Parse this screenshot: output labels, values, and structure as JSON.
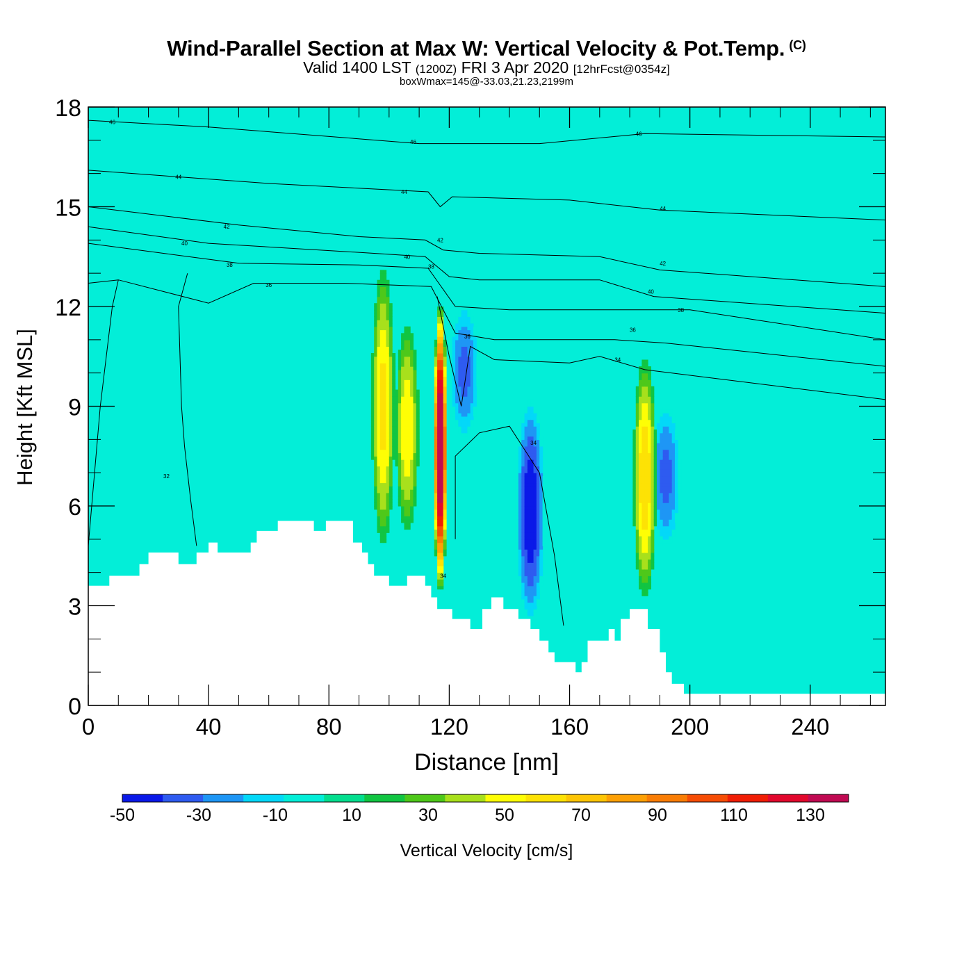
{
  "chart_data": {
    "type": "heatmap",
    "title": "Wind-Parallel Section at Max W: Vertical Velocity & Pot.Temp.",
    "title_mark": "(C)",
    "subtitle": {
      "main_a": "Valid 1400 LST",
      "small_a": "(1200Z)",
      "main_b": "FRI 3 Apr 2020",
      "small_b": "[12hrFcst@0354z]"
    },
    "annotation": "boxWmax=145@-33.03,21.23,2199m",
    "xlabel": "Distance [nm]",
    "ylabel": "Height [Kft MSL]",
    "xlim": [
      0,
      265
    ],
    "ylim": [
      0,
      18
    ],
    "xticks": [
      "0",
      "40",
      "80",
      "120",
      "160",
      "200",
      "240"
    ],
    "yticks": [
      "0",
      "3",
      "6",
      "9",
      "12",
      "15",
      "18"
    ],
    "colorbar": {
      "label": "Vertical Velocity [cm/s]",
      "ticks": [
        "-50",
        "-30",
        "-10",
        "10",
        "30",
        "50",
        "70",
        "90",
        "110",
        "130"
      ],
      "bounds": [
        -50,
        140
      ],
      "step": 10,
      "colors": [
        "#0a19e8",
        "#2e5bf0",
        "#1e96f5",
        "#03d8f8",
        "#03eed8",
        "#03de8e",
        "#11c542",
        "#4ec81a",
        "#a8e01c",
        "#fefe05",
        "#fde205",
        "#fdc505",
        "#fda005",
        "#f97d05",
        "#f64d05",
        "#f01e05",
        "#e2082d",
        "#c00a52"
      ],
      "color_note": "background value bin -10..0 #03eed8 dominates"
    },
    "background_w_cms": [
      -5,
      5
    ],
    "terrain_kft": [
      [
        0,
        3.6
      ],
      [
        7,
        3.6
      ],
      [
        7,
        3.9
      ],
      [
        17,
        3.9
      ],
      [
        17,
        4.25
      ],
      [
        20,
        4.25
      ],
      [
        20,
        4.6
      ],
      [
        30,
        4.6
      ],
      [
        30,
        4.25
      ],
      [
        36,
        4.25
      ],
      [
        36,
        4.6
      ],
      [
        40,
        4.6
      ],
      [
        40,
        4.9
      ],
      [
        43,
        4.9
      ],
      [
        43,
        4.6
      ],
      [
        54,
        4.6
      ],
      [
        54,
        4.9
      ],
      [
        56,
        4.9
      ],
      [
        56,
        5.25
      ],
      [
        63,
        5.25
      ],
      [
        63,
        5.55
      ],
      [
        75,
        5.55
      ],
      [
        75,
        5.25
      ],
      [
        79,
        5.25
      ],
      [
        79,
        5.55
      ],
      [
        88,
        5.55
      ],
      [
        88,
        4.9
      ],
      [
        91,
        4.9
      ],
      [
        91,
        4.6
      ],
      [
        93,
        4.6
      ],
      [
        93,
        4.25
      ],
      [
        95,
        4.25
      ],
      [
        95,
        3.9
      ],
      [
        100,
        3.9
      ],
      [
        100,
        3.6
      ],
      [
        106,
        3.6
      ],
      [
        106,
        3.9
      ],
      [
        112,
        3.9
      ],
      [
        112,
        3.6
      ],
      [
        114,
        3.6
      ],
      [
        114,
        3.25
      ],
      [
        116,
        3.25
      ],
      [
        116,
        2.9
      ],
      [
        121,
        2.9
      ],
      [
        121,
        2.6
      ],
      [
        127,
        2.6
      ],
      [
        127,
        2.3
      ],
      [
        131,
        2.3
      ],
      [
        131,
        2.9
      ],
      [
        134,
        2.9
      ],
      [
        134,
        3.25
      ],
      [
        138,
        3.25
      ],
      [
        138,
        2.9
      ],
      [
        143,
        2.9
      ],
      [
        143,
        2.6
      ],
      [
        147,
        2.6
      ],
      [
        147,
        2.3
      ],
      [
        150,
        2.3
      ],
      [
        150,
        1.95
      ],
      [
        153,
        1.95
      ],
      [
        153,
        1.6
      ],
      [
        155,
        1.6
      ],
      [
        155,
        1.3
      ],
      [
        162,
        1.3
      ],
      [
        162,
        1.0
      ],
      [
        164,
        1.0
      ],
      [
        164,
        1.3
      ],
      [
        166,
        1.3
      ],
      [
        166,
        1.95
      ],
      [
        173,
        1.95
      ],
      [
        173,
        2.3
      ],
      [
        175,
        2.3
      ],
      [
        175,
        1.95
      ],
      [
        177,
        1.95
      ],
      [
        177,
        2.6
      ],
      [
        180,
        2.6
      ],
      [
        180,
        2.9
      ],
      [
        186,
        2.9
      ],
      [
        186,
        2.3
      ],
      [
        190,
        2.3
      ],
      [
        190,
        1.6
      ],
      [
        192,
        1.6
      ],
      [
        192,
        1.0
      ],
      [
        194,
        1.0
      ],
      [
        194,
        0.65
      ],
      [
        198,
        0.65
      ],
      [
        198,
        0.35
      ],
      [
        265,
        0.35
      ]
    ],
    "features": [
      {
        "type": "updraft",
        "x_nm": 98,
        "base_kft": 4.4,
        "top_kft": 13.6,
        "peak_w_cms": 55
      },
      {
        "type": "updraft",
        "x_nm": 106,
        "base_kft": 4.9,
        "top_kft": 11.8,
        "peak_w_cms": 50
      },
      {
        "type": "updraft",
        "x_nm": 117,
        "base_kft": 3.2,
        "top_kft": 12.3,
        "peak_w_cms": 145
      },
      {
        "type": "updraft",
        "x_nm": 185,
        "base_kft": 2.9,
        "top_kft": 10.8,
        "peak_w_cms": 60
      },
      {
        "type": "downdraft",
        "x_nm": 125,
        "base_kft": 7.9,
        "top_kft": 12.2,
        "peak_w_cms": -35
      },
      {
        "type": "downdraft",
        "x_nm": 147,
        "base_kft": 2.3,
        "top_kft": 9.4,
        "peak_w_cms": -50
      },
      {
        "type": "downdraft",
        "x_nm": 192,
        "base_kft": 4.6,
        "top_kft": 9.2,
        "peak_w_cms": -35
      }
    ],
    "theta_contours": [
      {
        "value": 46,
        "points": [
          [
            0,
            17.6
          ],
          [
            40,
            17.4
          ],
          [
            110,
            16.9
          ],
          [
            150,
            16.9
          ],
          [
            185,
            17.2
          ],
          [
            265,
            17.1
          ]
        ],
        "label": "46",
        "label_at": [
          [
            8,
            17.55
          ],
          [
            108,
            16.95
          ],
          [
            183,
            17.2
          ]
        ]
      },
      {
        "value": 44,
        "points": [
          [
            0,
            16.1
          ],
          [
            60,
            15.7
          ],
          [
            113,
            15.45
          ],
          [
            117,
            15.0
          ],
          [
            121,
            15.3
          ],
          [
            160,
            15.2
          ],
          [
            190,
            14.9
          ],
          [
            265,
            14.6
          ]
        ],
        "label": "44",
        "label_at": [
          [
            30,
            15.9
          ],
          [
            105,
            15.45
          ],
          [
            191,
            14.95
          ]
        ]
      },
      {
        "value": 42,
        "points": [
          [
            0,
            15.0
          ],
          [
            50,
            14.45
          ],
          [
            90,
            14.1
          ],
          [
            112,
            14.0
          ],
          [
            118,
            13.7
          ],
          [
            130,
            13.6
          ],
          [
            170,
            13.5
          ],
          [
            190,
            13.1
          ],
          [
            265,
            12.6
          ]
        ],
        "label": "42",
        "label_at": [
          [
            46,
            14.4
          ],
          [
            117,
            14.0
          ],
          [
            191,
            13.3
          ]
        ]
      },
      {
        "value": 40,
        "points": [
          [
            0,
            14.4
          ],
          [
            40,
            13.9
          ],
          [
            95,
            13.6
          ],
          [
            112,
            13.5
          ],
          [
            120,
            12.9
          ],
          [
            130,
            12.8
          ],
          [
            170,
            12.8
          ],
          [
            188,
            12.3
          ],
          [
            265,
            11.8
          ]
        ],
        "label": "40",
        "label_at": [
          [
            32,
            13.9
          ],
          [
            106,
            13.5
          ],
          [
            187,
            12.45
          ]
        ]
      },
      {
        "value": 38,
        "points": [
          [
            0,
            13.9
          ],
          [
            50,
            13.3
          ],
          [
            90,
            13.25
          ],
          [
            113,
            13.15
          ],
          [
            122,
            12.0
          ],
          [
            140,
            11.9
          ],
          [
            180,
            11.9
          ],
          [
            200,
            11.9
          ],
          [
            265,
            11.0
          ]
        ],
        "label": "38",
        "label_at": [
          [
            47,
            13.25
          ],
          [
            114,
            13.2
          ],
          [
            197,
            11.9
          ]
        ]
      },
      {
        "value": 36,
        "points": [
          [
            0,
            12.7
          ],
          [
            10,
            12.8
          ],
          [
            40,
            12.1
          ],
          [
            55,
            12.7
          ],
          [
            85,
            12.7
          ],
          [
            114,
            12.6
          ],
          [
            122,
            11.2
          ],
          [
            135,
            11.0
          ],
          [
            175,
            11.0
          ],
          [
            192,
            10.9
          ],
          [
            265,
            10.2
          ]
        ],
        "label": "36",
        "label_at": [
          [
            60,
            12.65
          ],
          [
            126,
            11.1
          ],
          [
            181,
            11.3
          ]
        ]
      },
      {
        "value": 34,
        "points": [
          [
            0,
            4.8
          ],
          [
            4,
            9.0
          ],
          [
            8,
            12.0
          ],
          [
            10,
            12.8
          ]
        ],
        "label": "",
        "label_at": []
      },
      {
        "value": 34,
        "points": [
          [
            116,
            12.3
          ],
          [
            120,
            10.5
          ],
          [
            124,
            9.0
          ],
          [
            127,
            10.8
          ],
          [
            135,
            10.4
          ],
          [
            160,
            10.3
          ],
          [
            170,
            10.5
          ],
          [
            185,
            10.1
          ],
          [
            265,
            9.2
          ]
        ],
        "label": "34",
        "label_at": [
          [
            176,
            10.4
          ]
        ]
      },
      {
        "value": 34,
        "points": [
          [
            122,
            5.0
          ],
          [
            122,
            7.5
          ],
          [
            130,
            8.2
          ],
          [
            140,
            8.4
          ],
          [
            150,
            7.0
          ],
          [
            155,
            4.5
          ],
          [
            158,
            2.4
          ]
        ],
        "label": "34",
        "label_at": [
          [
            148,
            7.9
          ],
          [
            118,
            3.9
          ]
        ]
      },
      {
        "value": 32,
        "points": [
          [
            36,
            4.8
          ],
          [
            34,
            6.2
          ],
          [
            32,
            7.8
          ],
          [
            31,
            9.0
          ],
          [
            30,
            12.0
          ],
          [
            33,
            13.0
          ]
        ],
        "label": "32",
        "label_at": [
          [
            26,
            6.9
          ]
        ]
      }
    ]
  }
}
